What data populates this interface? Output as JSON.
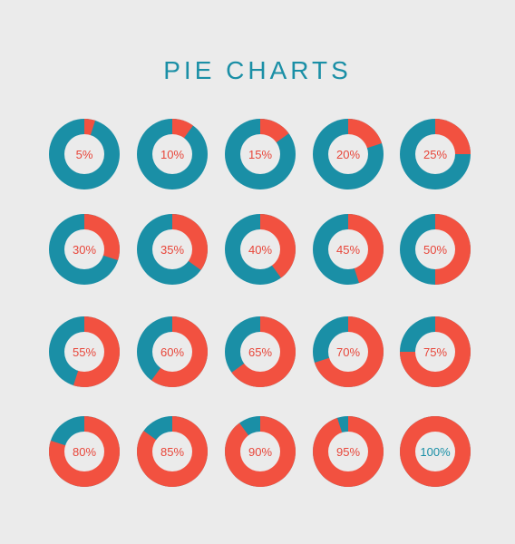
{
  "title": "PIE CHARTS",
  "colors": {
    "accent": "#f25140",
    "base": "#1a8fa6",
    "hole": "#ebebeb",
    "label": "#e8463a",
    "label_full": "#1a8fa6"
  },
  "chart_data": {
    "type": "pie",
    "title": "PIE CHARTS",
    "charts": [
      {
        "value": 5,
        "label": "5%"
      },
      {
        "value": 10,
        "label": "10%"
      },
      {
        "value": 15,
        "label": "15%"
      },
      {
        "value": 20,
        "label": "20%"
      },
      {
        "value": 25,
        "label": "25%"
      },
      {
        "value": 30,
        "label": "30%"
      },
      {
        "value": 35,
        "label": "35%"
      },
      {
        "value": 40,
        "label": "40%"
      },
      {
        "value": 45,
        "label": "45%"
      },
      {
        "value": 50,
        "label": "50%"
      },
      {
        "value": 55,
        "label": "55%"
      },
      {
        "value": 60,
        "label": "60%"
      },
      {
        "value": 65,
        "label": "65%"
      },
      {
        "value": 70,
        "label": "70%"
      },
      {
        "value": 75,
        "label": "75%"
      },
      {
        "value": 80,
        "label": "80%"
      },
      {
        "value": 85,
        "label": "85%"
      },
      {
        "value": 90,
        "label": "90%"
      },
      {
        "value": 95,
        "label": "95%"
      },
      {
        "value": 100,
        "label": "100%"
      }
    ]
  }
}
